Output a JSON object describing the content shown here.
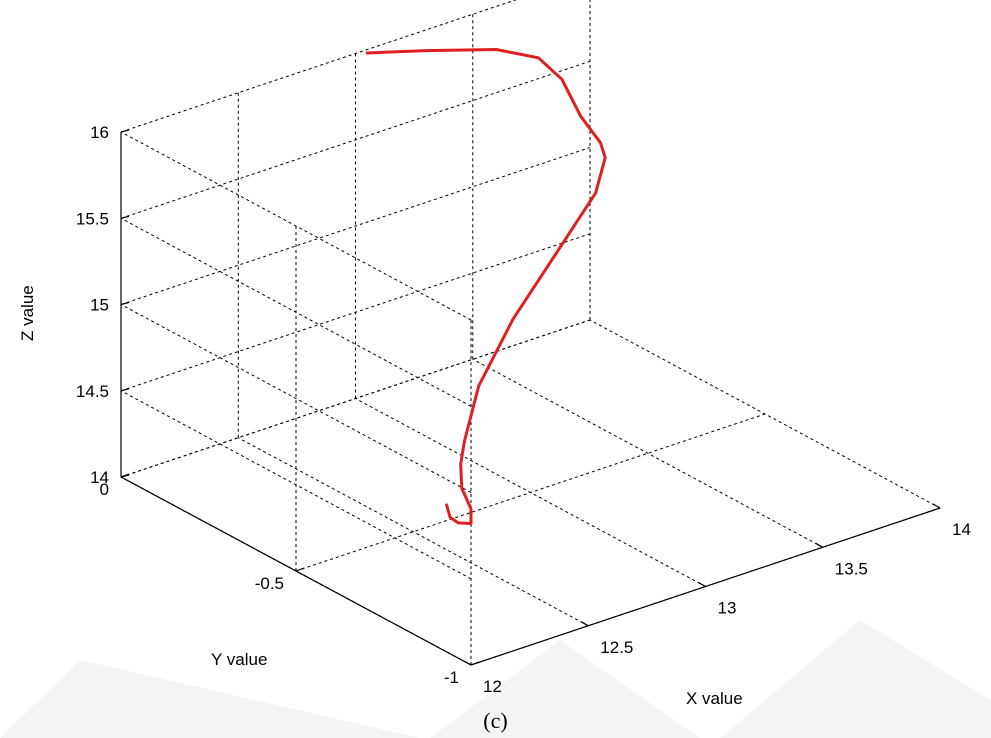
{
  "chart_data": {
    "type": "line3d",
    "xlabel": "X value",
    "ylabel": "Y value",
    "zlabel": "Z value",
    "xlim": [
      12,
      14
    ],
    "ylim": [
      -1,
      0
    ],
    "zlim": [
      14,
      16
    ],
    "xticks": [
      "12",
      "12.5",
      "13",
      "13.5",
      "14"
    ],
    "yticks": [
      "-1",
      "-0.5",
      "0"
    ],
    "zticks": [
      "14",
      "14.5",
      "15",
      "15.5",
      "16"
    ],
    "grid": true,
    "line_color": "#e02020",
    "trajectory": [
      {
        "x": 12.12,
        "y": -0.85,
        "z": 14.71
      },
      {
        "x": 12.06,
        "y": -0.9,
        "z": 14.72
      },
      {
        "x": 12.02,
        "y": -0.95,
        "z": 14.76
      },
      {
        "x": 12.0,
        "y": -1.0,
        "z": 14.82
      },
      {
        "x": 12.03,
        "y": -0.98,
        "z": 14.87
      },
      {
        "x": 12.08,
        "y": -0.92,
        "z": 14.9
      },
      {
        "x": 12.18,
        "y": -0.85,
        "z": 14.92
      },
      {
        "x": 12.3,
        "y": -0.78,
        "z": 14.92
      },
      {
        "x": 12.6,
        "y": -0.62,
        "z": 14.93
      },
      {
        "x": 13.0,
        "y": -0.45,
        "z": 14.95
      },
      {
        "x": 13.4,
        "y": -0.3,
        "z": 14.97
      },
      {
        "x": 13.8,
        "y": -0.15,
        "z": 14.99
      },
      {
        "x": 13.99,
        "y": -0.05,
        "z": 15.0
      },
      {
        "x": 14.0,
        "y": -0.03,
        "z": 15.06
      },
      {
        "x": 13.96,
        "y": 0.0,
        "z": 15.2
      },
      {
        "x": 13.88,
        "y": 0.0,
        "z": 15.45
      },
      {
        "x": 13.78,
        "y": 0.0,
        "z": 15.62
      },
      {
        "x": 13.6,
        "y": 0.0,
        "z": 15.75
      },
      {
        "x": 13.3,
        "y": 0.0,
        "z": 15.88
      },
      {
        "x": 13.05,
        "y": 0.0,
        "z": 15.98
      }
    ]
  },
  "caption": "(c)"
}
